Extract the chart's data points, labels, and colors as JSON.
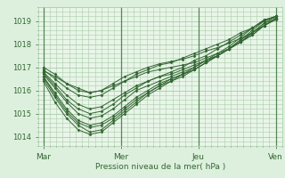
{
  "bg_color": "#ddf0dd",
  "plot_bg_color": "#e8f5e8",
  "grid_color": "#aaccaa",
  "line_color": "#336633",
  "marker_color": "#336633",
  "xlabel": "Pression niveau de la mer( hPa )",
  "xlabel_color": "#336633",
  "tick_color": "#336633",
  "xtick_labels": [
    "Mar",
    "Mer",
    "Jeu",
    "Ven"
  ],
  "xtick_positions": [
    0,
    48,
    96,
    144
  ],
  "ytick_labels": [
    "1014",
    "1015",
    "1016",
    "1017",
    "1018",
    "1019"
  ],
  "ylim": [
    1013.6,
    1019.6
  ],
  "xlim": [
    -3,
    148
  ],
  "series": [
    [
      1017.0,
      1016.7,
      1016.3,
      1016.1,
      1015.9,
      1016.0,
      1016.2,
      1016.4,
      1016.6,
      1016.8,
      1016.9,
      1017.0,
      1017.1,
      1017.2,
      1017.4,
      1017.6,
      1017.8,
      1018.1,
      1018.4,
      1018.8,
      1019.1
    ],
    [
      1016.8,
      1016.3,
      1015.8,
      1015.4,
      1015.2,
      1015.3,
      1015.6,
      1015.9,
      1016.2,
      1016.4,
      1016.6,
      1016.7,
      1016.9,
      1017.1,
      1017.3,
      1017.5,
      1017.8,
      1018.1,
      1018.4,
      1018.8,
      1019.1
    ],
    [
      1016.7,
      1016.1,
      1015.5,
      1015.0,
      1014.8,
      1014.9,
      1015.2,
      1015.6,
      1016.0,
      1016.2,
      1016.4,
      1016.6,
      1016.8,
      1017.0,
      1017.3,
      1017.5,
      1017.8,
      1018.1,
      1018.5,
      1018.8,
      1019.1
    ],
    [
      1016.6,
      1015.9,
      1015.2,
      1014.7,
      1014.5,
      1014.6,
      1014.9,
      1015.3,
      1015.7,
      1016.0,
      1016.3,
      1016.5,
      1016.7,
      1016.9,
      1017.2,
      1017.5,
      1017.8,
      1018.1,
      1018.5,
      1018.9,
      1019.1
    ],
    [
      1016.5,
      1015.7,
      1015.0,
      1014.5,
      1014.2,
      1014.3,
      1014.7,
      1015.1,
      1015.5,
      1015.9,
      1016.2,
      1016.4,
      1016.7,
      1016.9,
      1017.2,
      1017.5,
      1017.8,
      1018.2,
      1018.5,
      1018.9,
      1019.2
    ],
    [
      1016.4,
      1015.5,
      1014.8,
      1014.3,
      1014.1,
      1014.2,
      1014.6,
      1015.0,
      1015.4,
      1015.8,
      1016.1,
      1016.4,
      1016.6,
      1016.9,
      1017.2,
      1017.5,
      1017.8,
      1018.2,
      1018.6,
      1019.0,
      1019.2
    ],
    [
      1016.9,
      1016.5,
      1016.1,
      1015.8,
      1015.7,
      1015.8,
      1016.1,
      1016.4,
      1016.7,
      1016.9,
      1017.1,
      1017.2,
      1017.4,
      1017.6,
      1017.8,
      1018.0,
      1018.2,
      1018.5,
      1018.7,
      1019.0,
      1019.2
    ],
    [
      1016.75,
      1016.2,
      1015.6,
      1015.2,
      1015.0,
      1015.1,
      1015.4,
      1015.8,
      1016.1,
      1016.4,
      1016.6,
      1016.8,
      1017.0,
      1017.3,
      1017.5,
      1017.8,
      1018.1,
      1018.4,
      1018.7,
      1019.05,
      1019.2
    ],
    [
      1016.6,
      1015.8,
      1015.1,
      1014.6,
      1014.4,
      1014.5,
      1014.8,
      1015.2,
      1015.6,
      1015.9,
      1016.2,
      1016.5,
      1016.7,
      1017.0,
      1017.3,
      1017.6,
      1017.9,
      1018.3,
      1018.7,
      1019.05,
      1019.15
    ],
    [
      1016.85,
      1016.6,
      1016.3,
      1016.0,
      1015.9,
      1016.0,
      1016.3,
      1016.6,
      1016.8,
      1017.0,
      1017.15,
      1017.25,
      1017.35,
      1017.5,
      1017.7,
      1017.85,
      1018.05,
      1018.25,
      1018.5,
      1018.8,
      1019.05
    ]
  ],
  "vline_color": "#558855"
}
